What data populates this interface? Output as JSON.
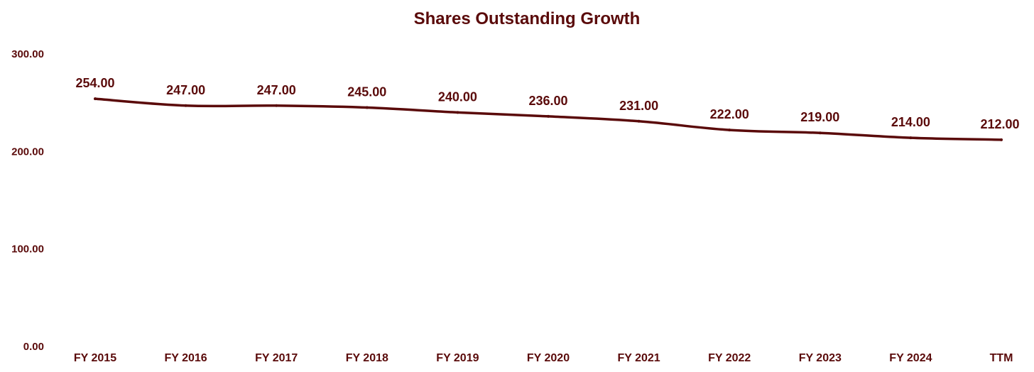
{
  "colors": {
    "series": "#5a0a0a",
    "text": "#5a0a0a",
    "background": "#ffffff"
  },
  "chart_data": {
    "type": "line",
    "title": "Shares Outstanding Growth",
    "xlabel": "",
    "ylabel": "",
    "categories": [
      "FY 2015",
      "FY 2016",
      "FY 2017",
      "FY 2018",
      "FY 2019",
      "FY 2020",
      "FY 2021",
      "FY 2022",
      "FY 2023",
      "FY 2024",
      "TTM"
    ],
    "series": [
      {
        "values": [
          254,
          247,
          247,
          245,
          240,
          236,
          231,
          222,
          219,
          214,
          212
        ],
        "labels": [
          "254.00",
          "247.00",
          "247.00",
          "245.00",
          "240.00",
          "236.00",
          "231.00",
          "222.00",
          "219.00",
          "214.00",
          "212.00"
        ]
      }
    ],
    "yticks": [
      0,
      100,
      200,
      300
    ],
    "ytick_labels": [
      "0.00",
      "100.00",
      "200.00",
      "300.00"
    ],
    "ylim": [
      0,
      300
    ],
    "grid": false,
    "legend": "none"
  }
}
